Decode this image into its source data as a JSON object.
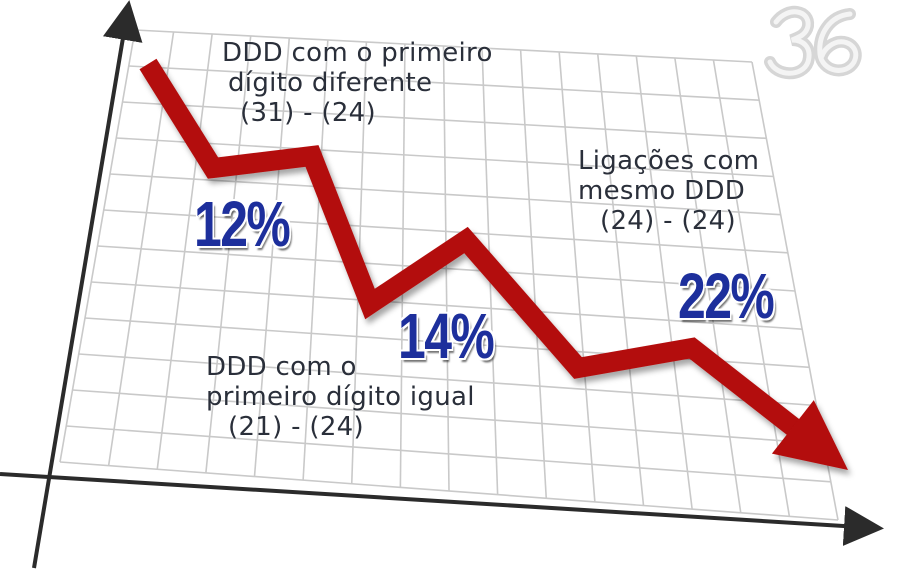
{
  "chart_data": {
    "type": "line",
    "title": "",
    "xlabel": "",
    "ylabel": "",
    "grid": true,
    "legend": "none",
    "line_color": "#b30d0d",
    "value_color": "#1d2f9c",
    "trend": [
      100,
      70,
      74,
      32,
      55,
      22,
      25,
      0
    ],
    "points": [
      {
        "value": "12%",
        "lines": [
          "DDD com o primeiro",
          "dígito diferente",
          "(31) - (24)"
        ]
      },
      {
        "value": "14%",
        "lines": [
          "DDD com o",
          "primeiro dígito igual",
          "(21) - (24)"
        ]
      },
      {
        "value": "22%",
        "lines": [
          "Ligações com",
          "mesmo DDD",
          "(24) - (24)"
        ]
      }
    ]
  },
  "logo": {
    "icon": "watermark-logo-icon"
  }
}
